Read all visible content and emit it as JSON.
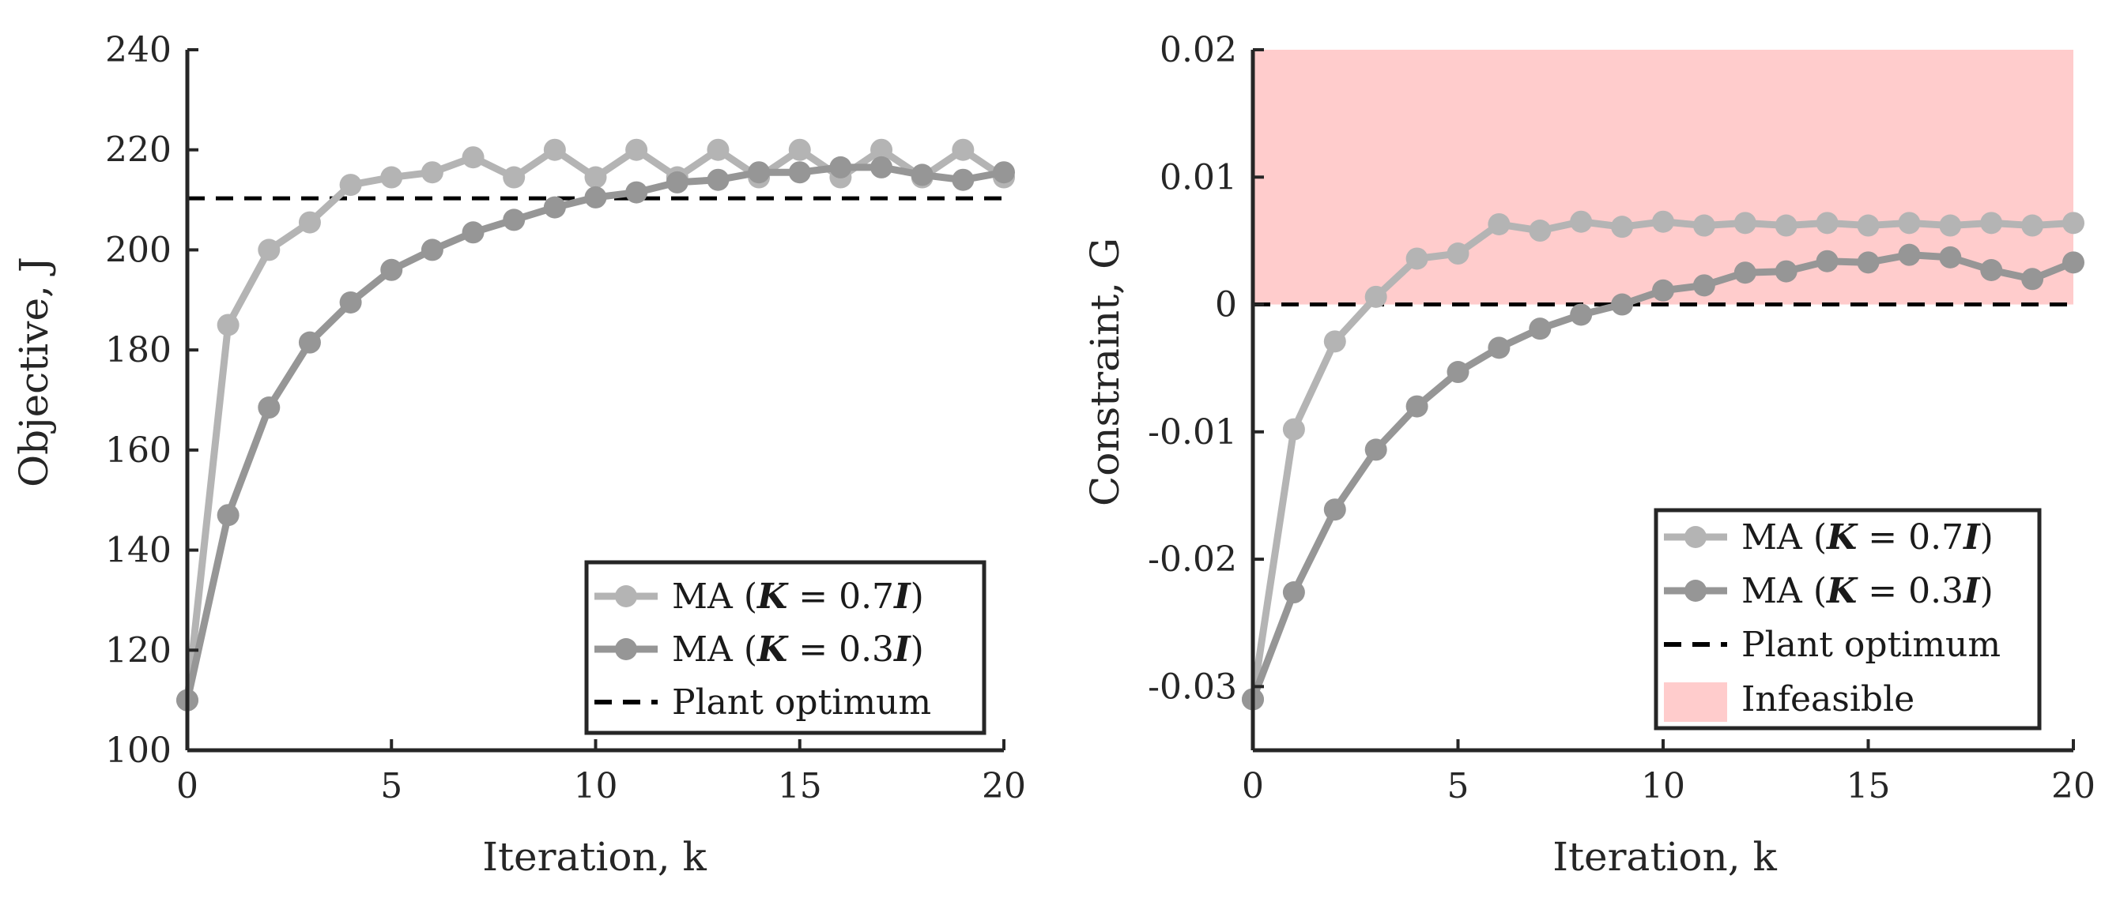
{
  "colors": {
    "series_07": "#b4b4b4",
    "series_03": "#969696",
    "optimum": "#000000",
    "infeasible": "#ffcccc",
    "axis": "#262626"
  },
  "chart_data": [
    {
      "type": "line",
      "title": "",
      "xlabel": "Iteration, k",
      "ylabel": "Objective, J",
      "xlim": [
        0,
        20
      ],
      "ylim": [
        100,
        240
      ],
      "xticks": [
        "0",
        "5",
        "10",
        "15",
        "20"
      ],
      "yticks": [
        "100",
        "120",
        "140",
        "160",
        "180",
        "200",
        "220",
        "240"
      ],
      "grid": false,
      "legend_position": "bottom-right",
      "series": [
        {
          "name": "MA (K = 0.7I)",
          "x": [
            0,
            1,
            2,
            3,
            4,
            5,
            6,
            7,
            8,
            9,
            10,
            11,
            12,
            13,
            14,
            15,
            16,
            17,
            18,
            19,
            20
          ],
          "values": [
            110,
            185,
            200,
            205.5,
            213,
            214.5,
            215.5,
            218.5,
            214.5,
            220,
            214.5,
            220,
            214.5,
            220,
            214.5,
            220,
            214.5,
            220,
            214.5,
            220,
            214.5
          ]
        },
        {
          "name": "MA (K = 0.3I)",
          "x": [
            0,
            1,
            2,
            3,
            4,
            5,
            6,
            7,
            8,
            9,
            10,
            11,
            12,
            13,
            14,
            15,
            16,
            17,
            18,
            19,
            20
          ],
          "values": [
            110,
            147,
            168.5,
            181.5,
            189.5,
            196,
            200,
            203.5,
            206,
            208.5,
            210.5,
            211.5,
            213.5,
            214,
            215.5,
            215.5,
            216.5,
            216.5,
            215,
            214,
            215.5
          ]
        }
      ],
      "reference_line": {
        "name": "Plant optimum",
        "y": 210.3
      }
    },
    {
      "type": "line",
      "title": "",
      "xlabel": "Iteration, k",
      "ylabel": "Constraint, G",
      "xlim": [
        0,
        20
      ],
      "ylim": [
        -0.035,
        0.02
      ],
      "xticks": [
        "0",
        "5",
        "10",
        "15",
        "20"
      ],
      "yticks": [
        "-0.03",
        "-0.02",
        "-0.01",
        "0",
        "0.01",
        "0.02"
      ],
      "grid": false,
      "legend_position": "bottom-right",
      "series": [
        {
          "name": "MA (K = 0.7I)",
          "x": [
            0,
            1,
            2,
            3,
            4,
            5,
            6,
            7,
            8,
            9,
            10,
            11,
            12,
            13,
            14,
            15,
            16,
            17,
            18,
            19,
            20
          ],
          "values": [
            -0.031,
            -0.0098,
            -0.0029,
            0.0006,
            0.0036,
            0.004,
            0.0063,
            0.0058,
            0.0065,
            0.0061,
            0.0065,
            0.0062,
            0.0064,
            0.0062,
            0.0064,
            0.0062,
            0.0064,
            0.0062,
            0.0064,
            0.0062,
            0.0064
          ]
        },
        {
          "name": "MA (K = 0.3I)",
          "x": [
            0,
            1,
            2,
            3,
            4,
            5,
            6,
            7,
            8,
            9,
            10,
            11,
            12,
            13,
            14,
            15,
            16,
            17,
            18,
            19,
            20
          ],
          "values": [
            -0.031,
            -0.0226,
            -0.0161,
            -0.0114,
            -0.008,
            -0.0053,
            -0.0034,
            -0.0019,
            -0.0008,
            0.0,
            0.0011,
            0.0015,
            0.0025,
            0.0026,
            0.0034,
            0.0033,
            0.0039,
            0.0037,
            0.0027,
            0.002,
            0.0033
          ]
        }
      ],
      "reference_line": {
        "name": "Plant optimum",
        "y": 0
      },
      "shaded_region": {
        "name": "Infeasible",
        "y_from": 0,
        "y_to": 0.02
      }
    }
  ],
  "legend": {
    "series_07": {
      "prefix": "MA (",
      "k": "K",
      "eq": " = 0.7",
      "i": "I",
      "suffix": ")"
    },
    "series_03": {
      "prefix": "MA (",
      "k": "K",
      "eq": " = 0.3",
      "i": "I",
      "suffix": ")"
    },
    "optimum": "Plant optimum",
    "infeasible": "Infeasible"
  }
}
